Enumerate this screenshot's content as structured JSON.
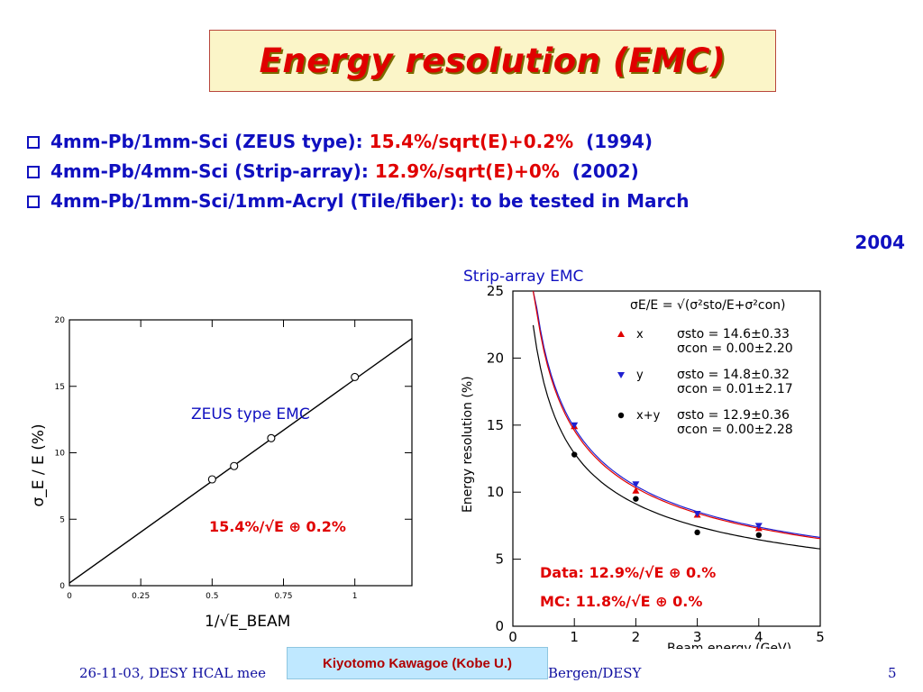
{
  "title": "Energy resolution (EMC)",
  "bullets": [
    {
      "text": "4mm-Pb/1mm-Sci (ZEUS type): ",
      "formula": "15.4%/sqrt(E)+0.2%",
      "year": "(1994)"
    },
    {
      "text": "4mm-Pb/4mm-Sci (Strip-array): ",
      "formula": "12.9%/sqrt(E)+0%",
      "year": "(2002)"
    },
    {
      "text": "4mm-Pb/1mm-Sci/1mm-Acryl (Tile/fiber): to be tested in March",
      "formula": "",
      "year": "2004"
    }
  ],
  "colors": {
    "title": "#e00000",
    "bullets": "#1010c0",
    "highlight": "#e00000",
    "title_bg": "#fbf5c8",
    "author_bg": "#bfe8ff"
  },
  "chart_data": [
    {
      "type": "line",
      "title": "ZEUS type EMC",
      "xlabel": "1/√E_BEAM",
      "ylabel": "σ_E / E (%)",
      "xlim": [
        0,
        1.2
      ],
      "ylim": [
        0,
        20
      ],
      "xticks": [
        "0",
        "0.25",
        "0.5",
        "0.75",
        "1"
      ],
      "yticks": [
        "0",
        "5",
        "10",
        "15",
        "20"
      ],
      "series": [
        {
          "values": [
            {
              "x": 0.5,
              "y": 8.0
            },
            {
              "x": 0.577,
              "y": 9.0
            },
            {
              "x": 0.707,
              "y": 11.1
            },
            {
              "x": 1.0,
              "y": 15.7
            }
          ]
        }
      ],
      "fit_line": [
        {
          "x": 0,
          "y": 0.2
        },
        {
          "x": 1.2,
          "y": 18.6
        }
      ],
      "annotation": "15.4%/√E ⊕ 0.2%"
    },
    {
      "type": "scatter",
      "title": "Strip-array EMC",
      "xlabel": "Beam energy (GeV)",
      "ylabel": "Energy resolution (%)",
      "xlim": [
        0,
        5
      ],
      "ylim": [
        0,
        25
      ],
      "xticks": [
        "0",
        "1",
        "2",
        "3",
        "4",
        "5"
      ],
      "yticks": [
        "0",
        "5",
        "10",
        "15",
        "20",
        "25"
      ],
      "legend_formula": "σE/E = √(σ²sto/E+σ²con)",
      "series": [
        {
          "name": "x",
          "marker": "triangle-up",
          "color": "#e00000",
          "points": [
            [
              1,
              14.9
            ],
            [
              2,
              10.1
            ],
            [
              3,
              8.3
            ],
            [
              4,
              7.3
            ]
          ],
          "params": [
            "σsto = 14.6±0.33",
            "σcon = 0.00±2.20"
          ]
        },
        {
          "name": "y",
          "marker": "triangle-down",
          "color": "#2020d0",
          "points": [
            [
              1,
              15.0
            ],
            [
              2,
              10.6
            ],
            [
              3,
              8.4
            ],
            [
              4,
              7.5
            ]
          ],
          "params": [
            "σsto = 14.8±0.32",
            "σcon = 0.01±2.17"
          ]
        },
        {
          "name": "x+y",
          "marker": "circle",
          "color": "#000000",
          "points": [
            [
              1,
              12.8
            ],
            [
              2,
              9.5
            ],
            [
              3,
              7.0
            ],
            [
              4,
              6.8
            ]
          ],
          "params": [
            "σsto = 12.9±0.36",
            "σcon = 0.00±2.28"
          ]
        }
      ],
      "curves": [
        {
          "sto": 14.8,
          "color": "#2020d0"
        },
        {
          "sto": 14.6,
          "color": "#e00000"
        },
        {
          "sto": 12.9,
          "color": "#000000"
        }
      ],
      "annotations": [
        "Data: 12.9%/√E ⊕ 0.%",
        "MC:   11.8%/√E ⊕ 0.%"
      ]
    }
  ],
  "footer": {
    "date": "26-11-03, DESY HCAL mee",
    "tail": "Bergen/DESY",
    "author": "Kiyotomo Kawagoe (Kobe U.)",
    "page": "5"
  }
}
